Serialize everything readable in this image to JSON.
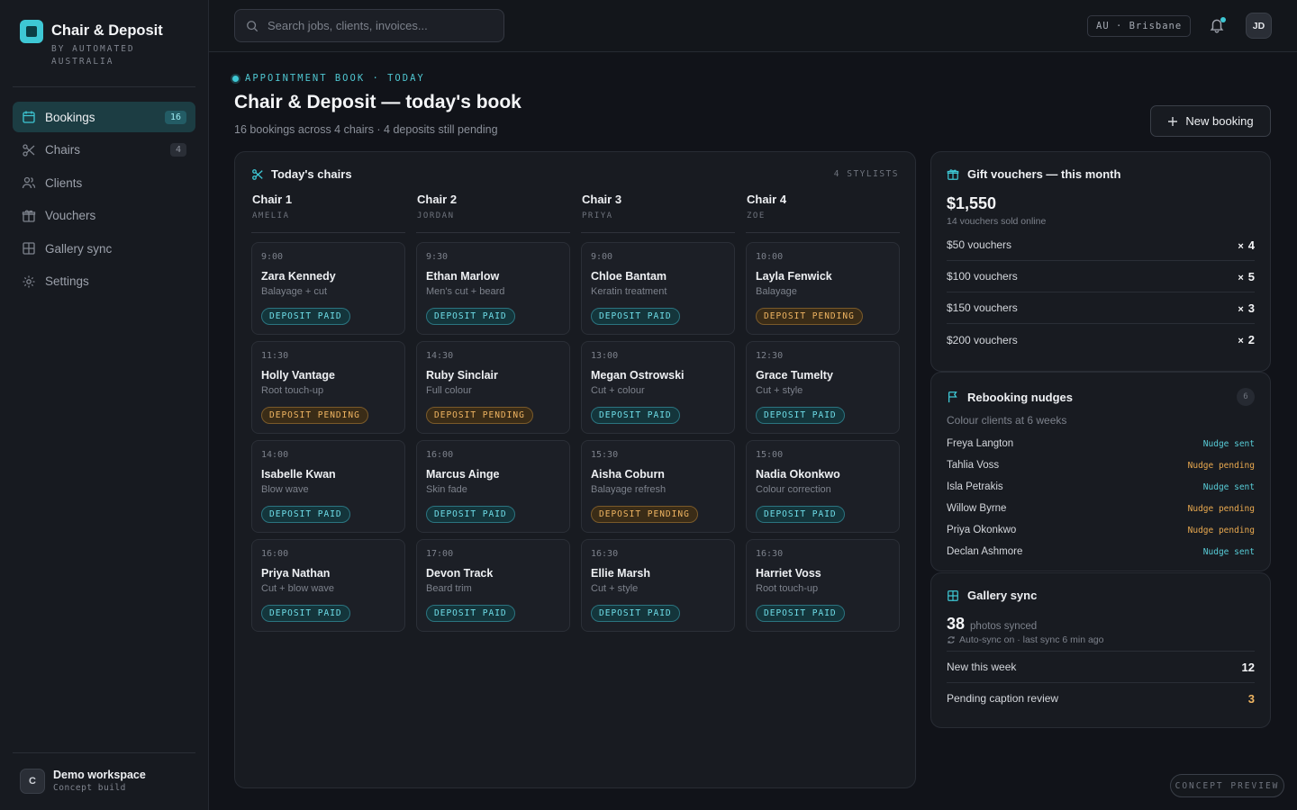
{
  "brand": {
    "title": "Chair & Deposit",
    "subtitle": "BY AUTOMATED AUSTRALIA"
  },
  "nav": [
    {
      "label": "Bookings",
      "count": "16",
      "icon": "calendar-icon"
    },
    {
      "label": "Chairs",
      "count": "4",
      "icon": "scissors-icon"
    },
    {
      "label": "Clients",
      "icon": "users-icon"
    },
    {
      "label": "Vouchers",
      "icon": "gift-icon"
    },
    {
      "label": "Gallery sync",
      "icon": "grid-icon"
    },
    {
      "label": "Settings",
      "icon": "gear-icon"
    }
  ],
  "workspace": {
    "initial": "C",
    "name": "Demo workspace",
    "sub": "Concept build"
  },
  "topbar": {
    "search_placeholder": "Search jobs, clients, invoices...",
    "locale": "AU · Brisbane",
    "avatar": "JD"
  },
  "header": {
    "eyebrow": "APPOINTMENT BOOK · TODAY",
    "title": "Chair & Deposit — today's book",
    "subtitle": "16 bookings across 4 chairs · 4 deposits still pending",
    "new_booking": "New booking"
  },
  "chairs": {
    "title": "Today's chairs",
    "stylists_label": "4 STYLISTS",
    "columns": [
      {
        "name": "Chair 1",
        "stylist": "AMELIA",
        "bookings": [
          {
            "time": "9:00",
            "client": "Zara Kennedy",
            "service": "Balayage + cut",
            "status": "DEPOSIT PAID"
          },
          {
            "time": "11:30",
            "client": "Holly Vantage",
            "service": "Root touch-up",
            "status": "DEPOSIT PENDING"
          },
          {
            "time": "14:00",
            "client": "Isabelle Kwan",
            "service": "Blow wave",
            "status": "DEPOSIT PAID"
          },
          {
            "time": "16:00",
            "client": "Priya Nathan",
            "service": "Cut + blow wave",
            "status": "DEPOSIT PAID"
          }
        ]
      },
      {
        "name": "Chair 2",
        "stylist": "JORDAN",
        "bookings": [
          {
            "time": "9:30",
            "client": "Ethan Marlow",
            "service": "Men's cut + beard",
            "status": "DEPOSIT PAID"
          },
          {
            "time": "14:30",
            "client": "Ruby Sinclair",
            "service": "Full colour",
            "status": "DEPOSIT PENDING"
          },
          {
            "time": "16:00",
            "client": "Marcus Ainge",
            "service": "Skin fade",
            "status": "DEPOSIT PAID"
          },
          {
            "time": "17:00",
            "client": "Devon Track",
            "service": "Beard trim",
            "status": "DEPOSIT PAID"
          }
        ]
      },
      {
        "name": "Chair 3",
        "stylist": "PRIYA",
        "bookings": [
          {
            "time": "9:00",
            "client": "Chloe Bantam",
            "service": "Keratin treatment",
            "status": "DEPOSIT PAID"
          },
          {
            "time": "13:00",
            "client": "Megan Ostrowski",
            "service": "Cut + colour",
            "status": "DEPOSIT PAID"
          },
          {
            "time": "15:30",
            "client": "Aisha Coburn",
            "service": "Balayage refresh",
            "status": "DEPOSIT PENDING"
          },
          {
            "time": "16:30",
            "client": "Ellie Marsh",
            "service": "Cut + style",
            "status": "DEPOSIT PAID"
          }
        ]
      },
      {
        "name": "Chair 4",
        "stylist": "ZOE",
        "bookings": [
          {
            "time": "10:00",
            "client": "Layla Fenwick",
            "service": "Balayage",
            "status": "DEPOSIT PENDING"
          },
          {
            "time": "12:30",
            "client": "Grace Tumelty",
            "service": "Cut + style",
            "status": "DEPOSIT PAID"
          },
          {
            "time": "15:00",
            "client": "Nadia Okonkwo",
            "service": "Colour correction",
            "status": "DEPOSIT PAID"
          },
          {
            "time": "16:30",
            "client": "Harriet Voss",
            "service": "Root touch-up",
            "status": "DEPOSIT PAID"
          }
        ]
      }
    ]
  },
  "vouchers": {
    "title": "Gift vouchers — this month",
    "total": "$1,550",
    "sub": "14 vouchers sold online",
    "rows": [
      {
        "label": "$50 vouchers",
        "count": "4"
      },
      {
        "label": "$100 vouchers",
        "count": "5"
      },
      {
        "label": "$150 vouchers",
        "count": "3"
      },
      {
        "label": "$200 vouchers",
        "count": "2"
      }
    ]
  },
  "nudges": {
    "title": "Rebooking nudges",
    "count": "6",
    "sub": "Colour clients at 6 weeks",
    "rows": [
      {
        "name": "Freya Langton",
        "status": "Nudge sent"
      },
      {
        "name": "Tahlia Voss",
        "status": "Nudge pending"
      },
      {
        "name": "Isla Petrakis",
        "status": "Nudge sent"
      },
      {
        "name": "Willow Byrne",
        "status": "Nudge pending"
      },
      {
        "name": "Priya Okonkwo",
        "status": "Nudge pending"
      },
      {
        "name": "Declan Ashmore",
        "status": "Nudge sent"
      }
    ]
  },
  "gallery": {
    "title": "Gallery sync",
    "count": "38",
    "unit": "photos synced",
    "auto": "Auto-sync on · last sync 6 min ago",
    "rows": [
      {
        "label": "New this week",
        "value": "12"
      },
      {
        "label": "Pending caption review",
        "value": "3"
      }
    ]
  },
  "concept_label": "CONCEPT PREVIEW",
  "colors": {
    "accent": "#3ec7d4",
    "pending": "#f0b562",
    "background": "#111319"
  }
}
